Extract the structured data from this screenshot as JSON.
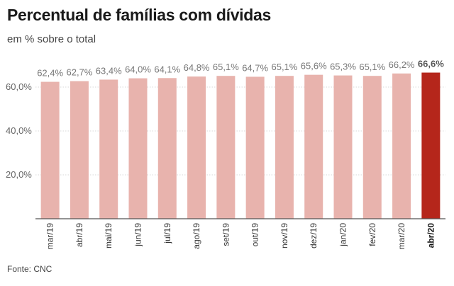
{
  "chart_data": {
    "type": "bar",
    "title": "Percentual de famílias com dívidas",
    "subtitle": "em % sobre o total",
    "source": "Fonte: CNC",
    "categories": [
      "mar/19",
      "abr/19",
      "mai/19",
      "jun/19",
      "jul/19",
      "ago/19",
      "set/19",
      "out/19",
      "nov/19",
      "dez/19",
      "jan/20",
      "fev/20",
      "mar/20",
      "abr/20"
    ],
    "values": [
      62.4,
      62.7,
      63.4,
      64.0,
      64.1,
      64.8,
      65.1,
      64.7,
      65.1,
      65.6,
      65.3,
      65.1,
      66.2,
      66.6
    ],
    "value_labels": [
      "62,4%",
      "62,7%",
      "63,4%",
      "64,0%",
      "64,1%",
      "64,8%",
      "65,1%",
      "64,7%",
      "65,1%",
      "65,6%",
      "65,3%",
      "65,1%",
      "66,2%",
      "66,6%"
    ],
    "yticks": [
      20,
      40,
      60
    ],
    "ytick_labels": [
      "20,0%",
      "40,0%",
      "60,0%"
    ],
    "ylim": [
      0,
      70
    ],
    "grid": true,
    "highlight_index": 13,
    "colors": {
      "bar": "#e8b3ad",
      "highlight": "#b5261b"
    }
  }
}
